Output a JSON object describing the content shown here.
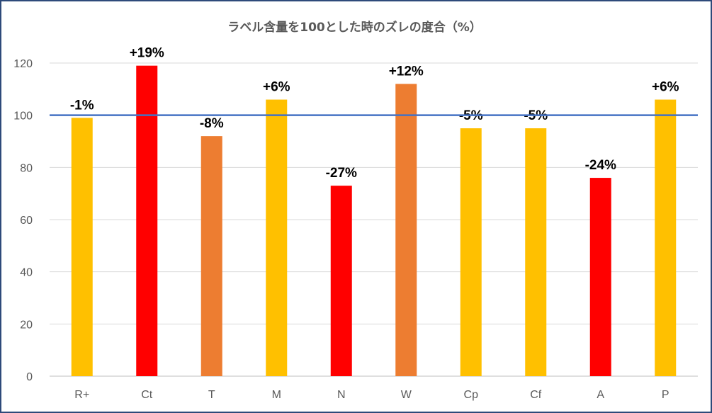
{
  "chart_data": {
    "type": "bar",
    "title": "ラベル含量を100とした時のズレの度合（%）",
    "categories": [
      "R+",
      "Ct",
      "T",
      "M",
      "N",
      "W",
      "Cp",
      "Cf",
      "A",
      "P"
    ],
    "values": [
      99,
      119,
      92,
      106,
      73,
      112,
      95,
      95,
      76,
      106
    ],
    "data_labels": [
      "-1%",
      "+19%",
      "-8%",
      "+6%",
      "-27%",
      "+12%",
      "-5%",
      "-5%",
      "-24%",
      "+6%"
    ],
    "bar_colors": [
      "#FFC000",
      "#FF0000",
      "#ED7D31",
      "#FFC000",
      "#FF0000",
      "#ED7D31",
      "#FFC000",
      "#FFC000",
      "#FF0000",
      "#FFC000"
    ],
    "ylim": [
      0,
      120
    ],
    "yticks": [
      0,
      20,
      40,
      60,
      80,
      100,
      120
    ],
    "reference_line": {
      "value": 100,
      "color": "#4472C4"
    },
    "grid": true,
    "gridline_color": "#D9D9D9",
    "legend": "none"
  }
}
